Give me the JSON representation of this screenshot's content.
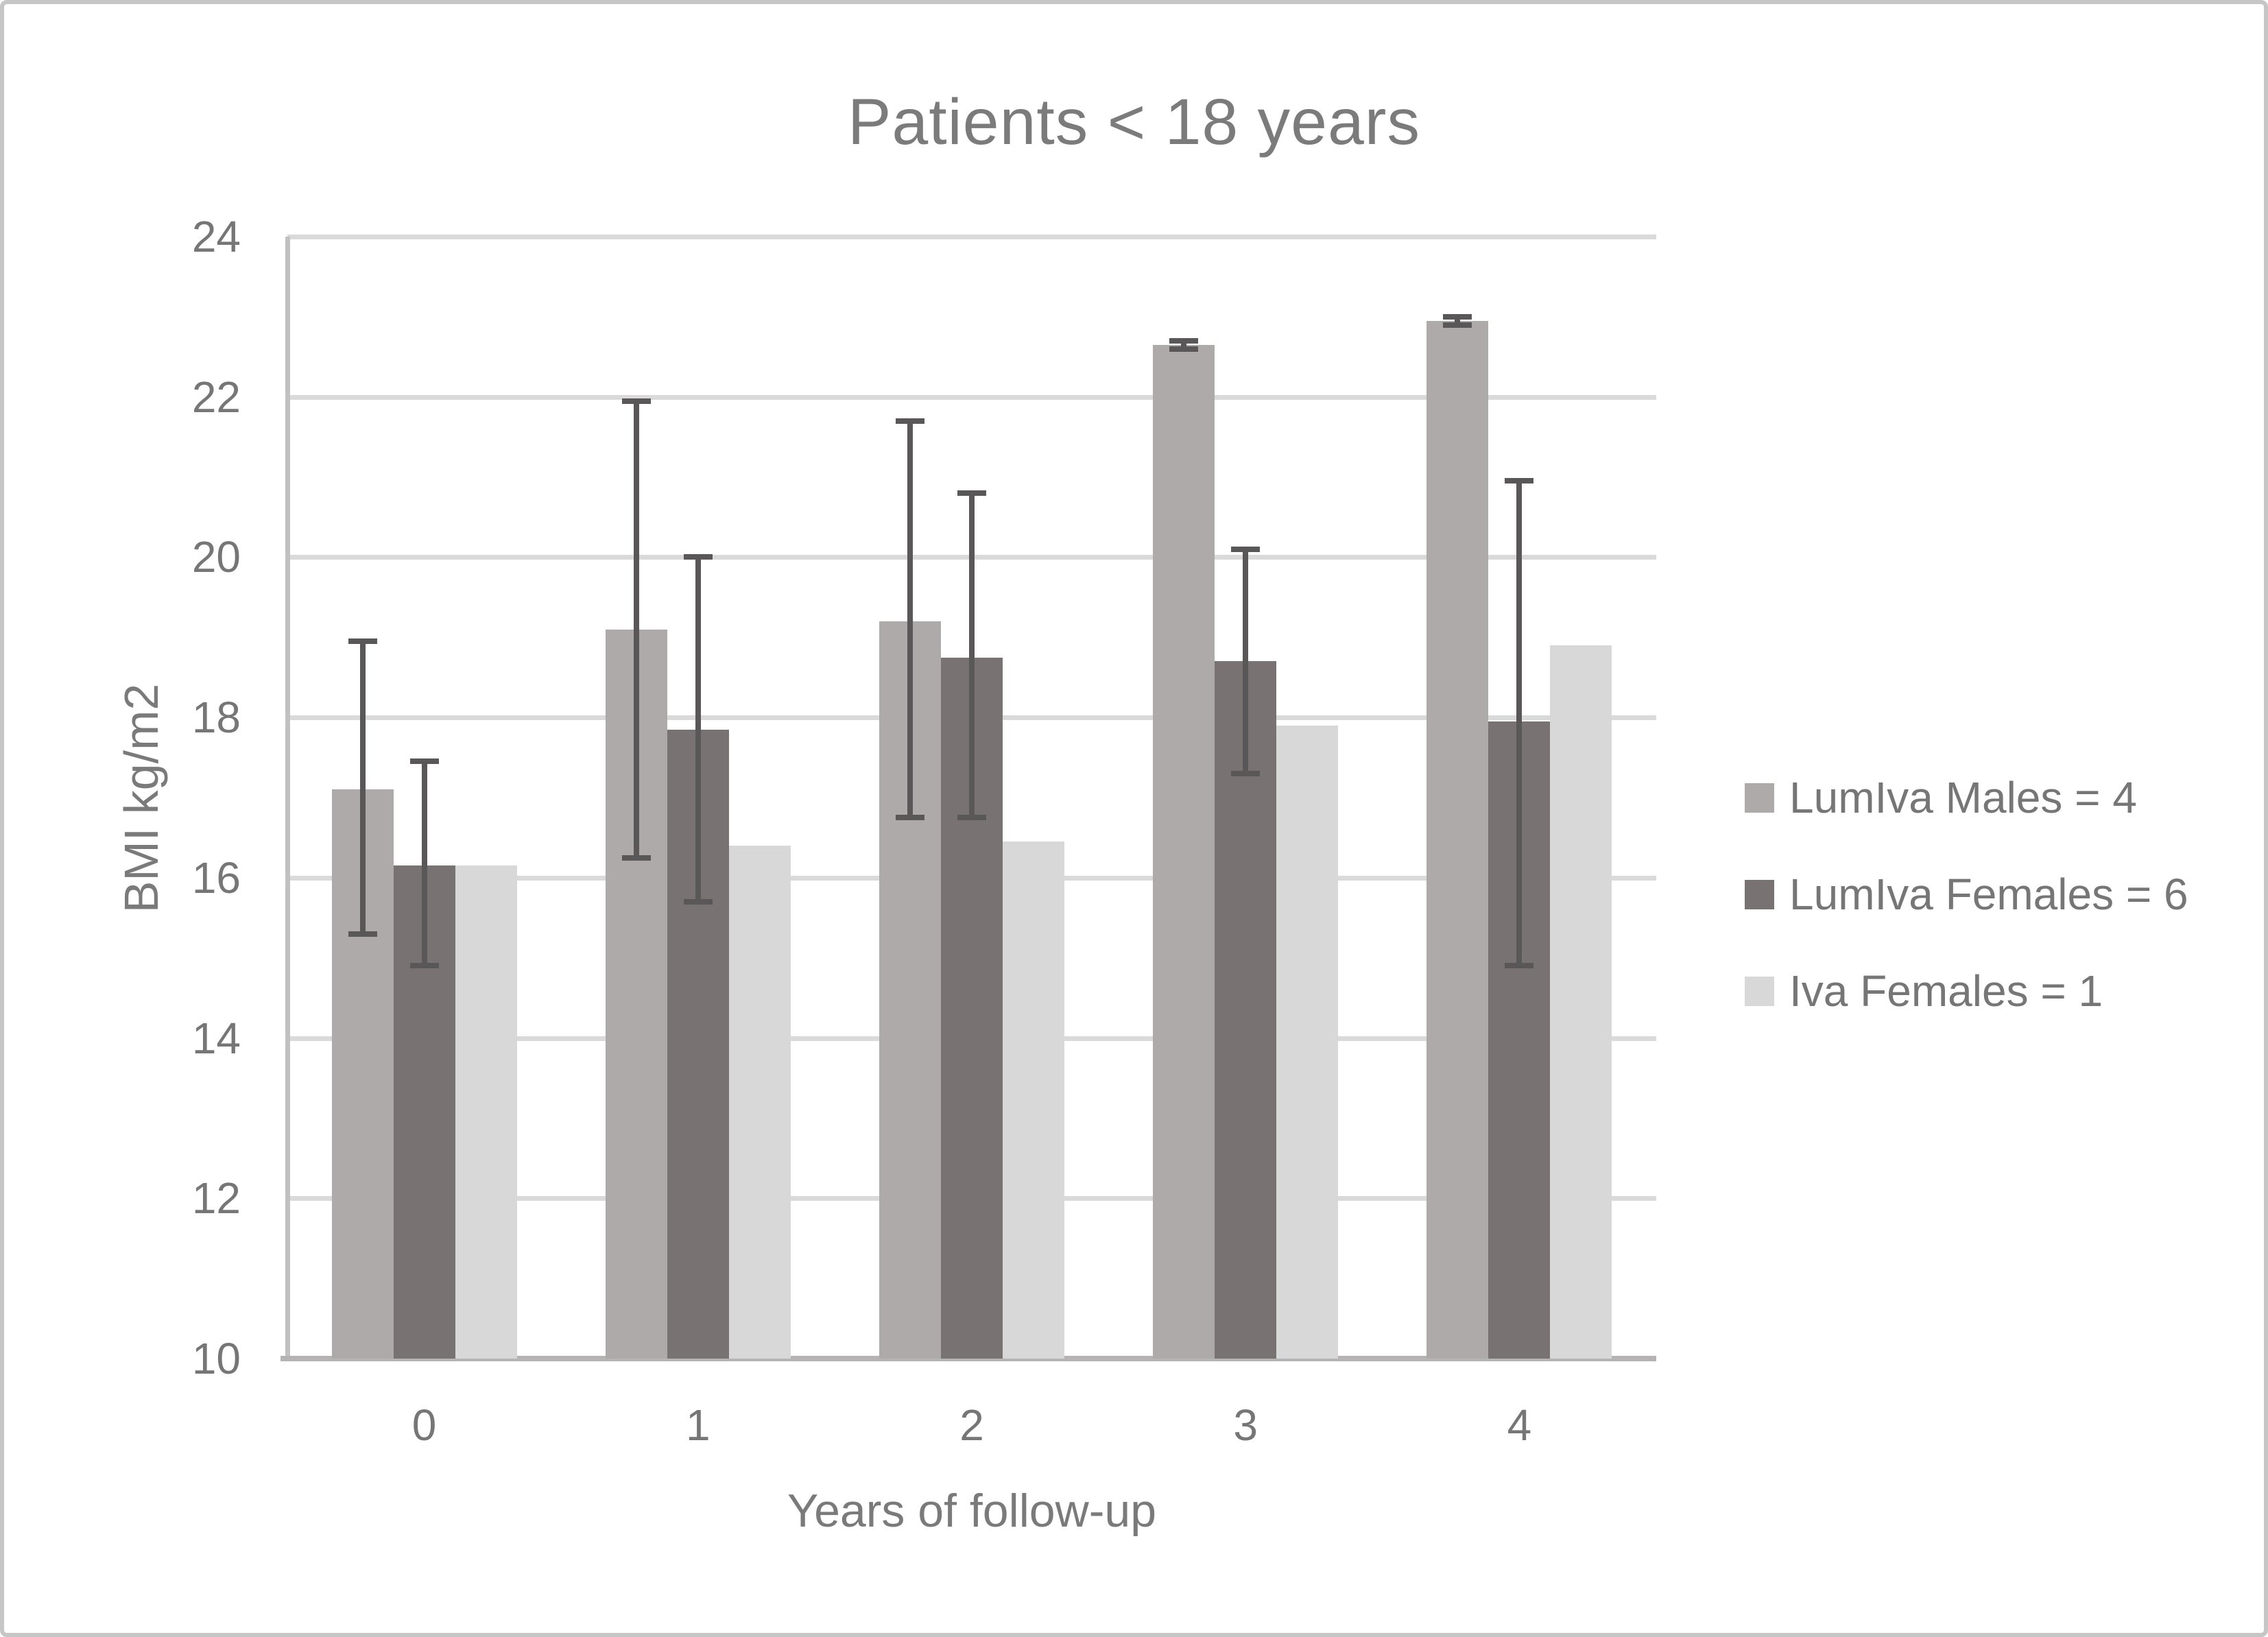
{
  "chart_data": {
    "type": "bar",
    "title": "Patients < 18 years",
    "xlabel": "Years of follow-up",
    "ylabel": "BMI kg/m2",
    "categories": [
      "0",
      "1",
      "2",
      "3",
      "4"
    ],
    "ylim": [
      10,
      24
    ],
    "yticks": [
      10,
      12,
      14,
      16,
      18,
      20,
      22,
      24
    ],
    "grid": "horizontal",
    "legend_position": "right",
    "series": [
      {
        "name": "LumIva Males = 4",
        "color": "#aeaaa9",
        "values": [
          17.1,
          19.1,
          19.2,
          22.65,
          22.95
        ],
        "err_lo": [
          15.3,
          16.25,
          16.75,
          22.6,
          22.9
        ],
        "err_hi": [
          18.95,
          21.95,
          21.7,
          22.7,
          23.0
        ]
      },
      {
        "name": "LumIva Females = 6",
        "color": "#787272",
        "values": [
          16.15,
          17.85,
          18.75,
          18.7,
          17.95
        ],
        "err_lo": [
          14.9,
          15.7,
          16.75,
          17.3,
          14.9
        ],
        "err_hi": [
          17.45,
          20.0,
          20.8,
          20.1,
          20.95
        ]
      },
      {
        "name": "Iva Females = 1",
        "color": "#d9d8d8",
        "values": [
          16.15,
          16.4,
          16.45,
          17.9,
          18.9
        ],
        "err_lo": null,
        "err_hi": null
      }
    ],
    "palette": {
      "error_bar": "#595757",
      "gridline": "#dadada",
      "y_axis_line": "#c1c1c1",
      "x_axis_line": "#b5b3b3",
      "text": "#767676",
      "title_text": "#7b7b7b",
      "frame_border": "#c6c6c6",
      "background": "#ffffff"
    }
  }
}
